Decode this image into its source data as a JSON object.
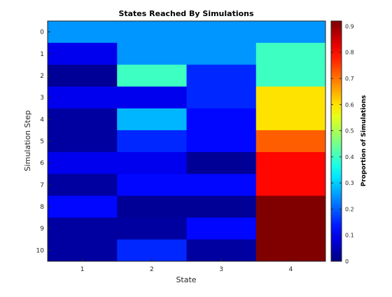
{
  "chart_data": {
    "type": "heatmap",
    "title": "States Reached By Simulations",
    "xlabel": "State",
    "ylabel": "Simulation Step",
    "x_categories": [
      "1",
      "2",
      "3",
      "4"
    ],
    "y_categories": [
      "0",
      "1",
      "2",
      "3",
      "4",
      "5",
      "6",
      "7",
      "8",
      "9",
      "10"
    ],
    "values": [
      [
        0.25,
        0.25,
        0.25,
        0.25
      ],
      [
        0.1,
        0.25,
        0.25,
        0.4
      ],
      [
        0.02,
        0.4,
        0.15,
        0.4
      ],
      [
        0.1,
        0.1,
        0.15,
        0.6
      ],
      [
        0.03,
        0.28,
        0.12,
        0.6
      ],
      [
        0.03,
        0.15,
        0.12,
        0.72
      ],
      [
        0.1,
        0.1,
        0.02,
        0.8
      ],
      [
        0.03,
        0.12,
        0.12,
        0.8
      ],
      [
        0.12,
        0.02,
        0.02,
        0.92
      ],
      [
        0.03,
        0.03,
        0.12,
        0.92
      ],
      [
        0.03,
        0.15,
        0.03,
        0.92
      ]
    ],
    "colorbar": {
      "label": "Proportion of Simulations",
      "min": 0,
      "max": 0.92,
      "ticks": [
        "0",
        "0.1",
        "0.2",
        "0.3",
        "0.4",
        "0.5",
        "0.6",
        "0.7",
        "0.8",
        "0.9"
      ],
      "tick_values": [
        0,
        0.1,
        0.2,
        0.3,
        0.4,
        0.5,
        0.6,
        0.7,
        0.8,
        0.9
      ],
      "colormap": "jet"
    },
    "grid": false
  }
}
